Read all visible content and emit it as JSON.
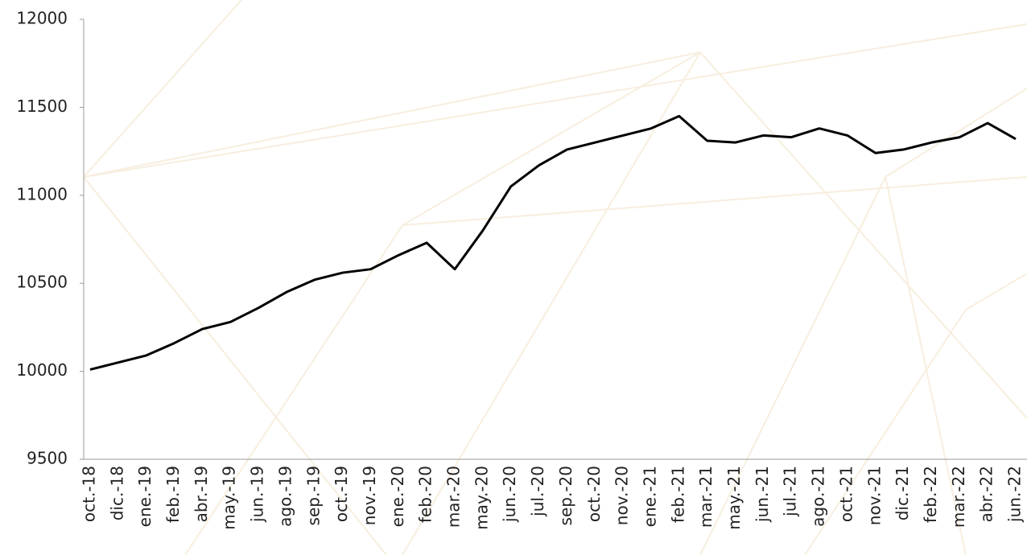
{
  "chart_data": {
    "type": "line",
    "categories": [
      "oct.-18",
      "dic.-18",
      "ene.-19",
      "feb.-19",
      "abr.-19",
      "may.-19",
      "jun.-19",
      "ago.-19",
      "sep.-19",
      "oct.-19",
      "nov.-19",
      "ene.-20",
      "feb.-20",
      "mar.-20",
      "may.-20",
      "jun.-20",
      "jul.-20",
      "sep.-20",
      "oct.-20",
      "nov.-20",
      "ene.-21",
      "feb.-21",
      "mar.-21",
      "may.-21",
      "jun.-21",
      "jul.-21",
      "ago.-21",
      "oct.-21",
      "nov.-21",
      "dic.-21",
      "feb.-22",
      "mar.-22",
      "abr.-22",
      "jun.-22"
    ],
    "series": [
      {
        "color": "#000000",
        "values": [
          10010,
          10050,
          10090,
          10160,
          10240,
          10280,
          10360,
          10450,
          10520,
          10560,
          10580,
          10660,
          10730,
          10580,
          10800,
          11050,
          11170,
          11260,
          11300,
          11340,
          11380,
          11450,
          11310,
          11300,
          11340,
          11330,
          11380,
          11340,
          11240,
          11260,
          11300,
          11330,
          11410,
          11320
        ]
      }
    ],
    "ylim": [
      9500,
      12000
    ],
    "yticks": [
      9500,
      10000,
      10500,
      11000,
      11500,
      12000
    ],
    "grid": false
  }
}
